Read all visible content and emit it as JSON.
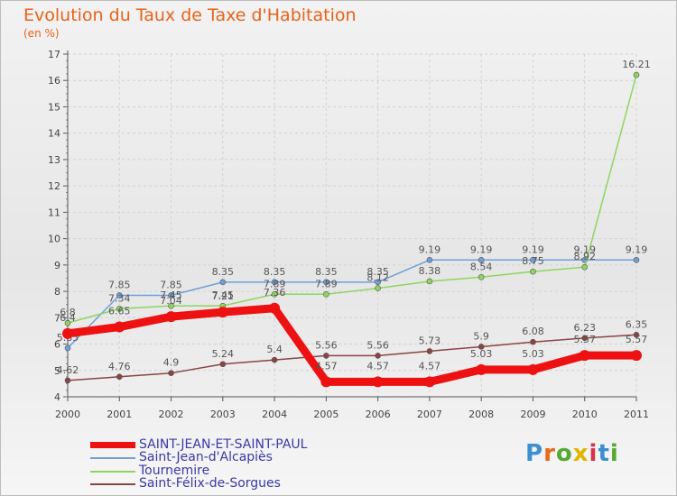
{
  "header": {
    "title": "Evolution du Taux de Taxe d'Habitation",
    "unit": "(en %)"
  },
  "logo": {
    "text": "Proxiti",
    "colors": [
      "#3b8fd1",
      "#e86a1a",
      "#55aa33",
      "#e2b400",
      "#d6334a",
      "#3b8fd1",
      "#55aa33"
    ]
  },
  "chart_data": {
    "type": "line",
    "title": "Evolution du Taux de Taxe d'Habitation",
    "ylabel": "(en %)",
    "xlabel": "",
    "x": [
      "2000",
      "2001",
      "2002",
      "2003",
      "2004",
      "2005",
      "2006",
      "2007",
      "2008",
      "2009",
      "2010",
      "2011"
    ],
    "ylim": [
      4,
      17
    ],
    "yticks": [
      "4",
      "5",
      "6",
      "7",
      "8",
      "9",
      "10",
      "11",
      "12",
      "13",
      "14",
      "15",
      "16",
      "17"
    ],
    "grid": true,
    "legend_position": "bottom",
    "series": [
      {
        "name": "SAINT-JEAN-ET-SAINT-PAUL",
        "color": "#ee1111",
        "values": [
          6.4,
          6.65,
          7.04,
          7.21,
          7.36,
          4.57,
          4.57,
          4.57,
          5.03,
          5.03,
          5.57,
          5.57
        ],
        "labels": [
          "6.4",
          "6.65",
          "7.04",
          "7.21",
          "7.36",
          "4.57",
          "4.57",
          "4.57",
          "5.03",
          "5.03",
          "5.57",
          "5.57"
        ]
      },
      {
        "name": "Saint-Jean-d'Alcapiès",
        "color": "#6f9fd8",
        "values": [
          5.85,
          7.85,
          7.85,
          8.35,
          8.35,
          8.35,
          8.35,
          9.19,
          9.19,
          9.19,
          9.19,
          9.19
        ],
        "labels": [
          "5.85",
          "7.85",
          "7.85",
          "8.35",
          "8.35",
          "8.35",
          "8.35",
          "9.19",
          "9.19",
          "9.19",
          "9.19",
          "9.19"
        ]
      },
      {
        "name": "Tournemire",
        "color": "#8fd460",
        "values": [
          6.8,
          7.34,
          7.45,
          7.45,
          7.89,
          7.89,
          8.12,
          8.38,
          8.54,
          8.75,
          8.92,
          16.21
        ],
        "labels": [
          "6.8",
          "7.34",
          "7.45",
          "7.45",
          "7.89",
          "7.89",
          "8.12",
          "8.38",
          "8.54",
          "8.75",
          "8.92",
          "16.21"
        ]
      },
      {
        "name": "Saint-Félix-de-Sorgues",
        "color": "#8b4444",
        "values": [
          4.62,
          4.76,
          4.9,
          5.24,
          5.4,
          5.56,
          5.56,
          5.73,
          5.9,
          6.08,
          6.23,
          6.35
        ],
        "labels": [
          "4.62",
          "4.76",
          "4.9",
          "5.24",
          "5.4",
          "5.56",
          "5.56",
          "5.73",
          "5.9",
          "6.08",
          "6.23",
          "6.35"
        ]
      }
    ]
  }
}
